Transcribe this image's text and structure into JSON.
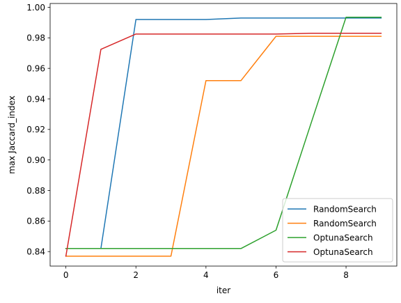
{
  "chart_data": {
    "type": "line",
    "xlabel": "iter",
    "ylabel": "max Jaccard_index",
    "xlim": [
      -0.45,
      9.45
    ],
    "ylim": [
      0.8305,
      1.0025
    ],
    "xticks": [
      0,
      2,
      4,
      6,
      8
    ],
    "xtick_labels": [
      "0",
      "2",
      "4",
      "6",
      "8"
    ],
    "yticks": [
      0.84,
      0.86,
      0.88,
      0.9,
      0.92,
      0.94,
      0.96,
      0.98,
      1.0
    ],
    "ytick_labels": [
      "0.84",
      "0.86",
      "0.88",
      "0.90",
      "0.92",
      "0.94",
      "0.96",
      "0.98",
      "1.00"
    ],
    "grid": false,
    "legend_position": "lower-right",
    "x": [
      0,
      1,
      2,
      3,
      4,
      5,
      6,
      7,
      8,
      9
    ],
    "series": [
      {
        "name": "RandomSearch",
        "color": "#1f77b4",
        "values": [
          0.842,
          0.842,
          0.992,
          0.992,
          0.992,
          0.993,
          0.993,
          0.993,
          0.993,
          0.993
        ]
      },
      {
        "name": "RandomSearch",
        "color": "#ff7f0e",
        "values": [
          0.837,
          0.837,
          0.837,
          0.837,
          0.952,
          0.952,
          0.981,
          0.981,
          0.981,
          0.981
        ]
      },
      {
        "name": "OptunaSearch",
        "color": "#2ca02c",
        "values": [
          0.842,
          0.842,
          0.842,
          0.842,
          0.842,
          0.842,
          0.854,
          0.924,
          0.9935,
          0.9935
        ]
      },
      {
        "name": "OptunaSearch",
        "color": "#d62728",
        "values": [
          0.837,
          0.9725,
          0.9825,
          0.9825,
          0.9825,
          0.9825,
          0.9825,
          0.983,
          0.983,
          0.983
        ]
      }
    ]
  }
}
